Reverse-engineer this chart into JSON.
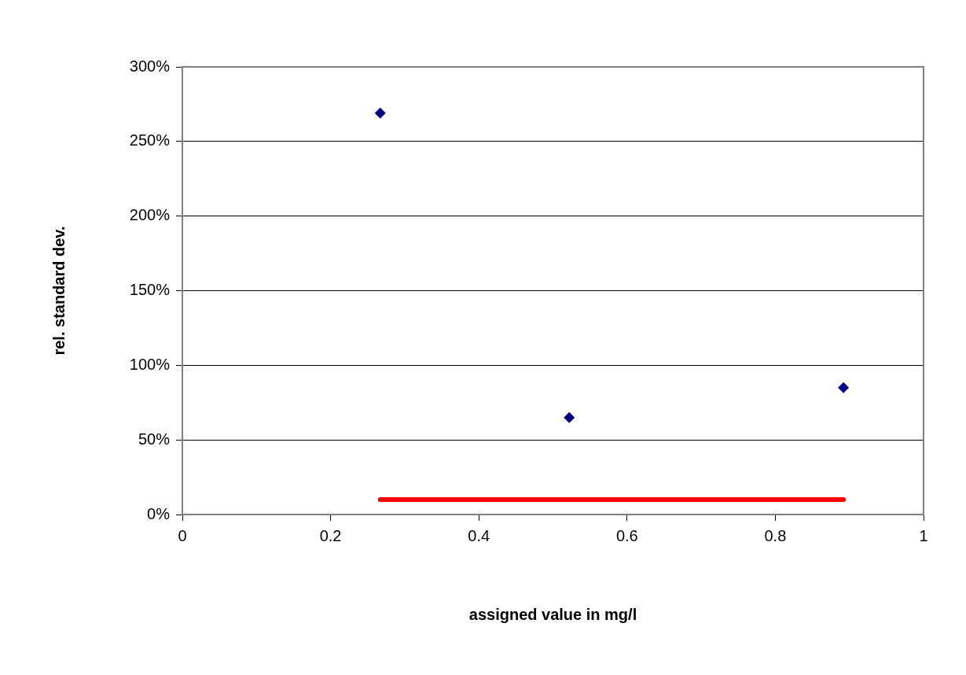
{
  "chart_data": {
    "type": "scatter",
    "xlabel": "assigned value in mg/l",
    "ylabel": "rel. standard dev.",
    "xlim": [
      0,
      1
    ],
    "xticks": [
      0,
      0.2,
      0.4,
      0.6,
      0.8,
      1
    ],
    "ylim": [
      0,
      300
    ],
    "yticks": [
      {
        "value": 0,
        "label": "0%"
      },
      {
        "value": 50,
        "label": "50%"
      },
      {
        "value": 100,
        "label": "100%"
      },
      {
        "value": 150,
        "label": "150%"
      },
      {
        "value": 200,
        "label": "200%"
      },
      {
        "value": 250,
        "label": "250%"
      },
      {
        "value": 300,
        "label": "300%"
      }
    ],
    "grid": "y",
    "legend": false,
    "series": [
      {
        "type": "scatter",
        "color": "#000080",
        "marker": "diamond",
        "x": [
          0.267,
          0.522,
          0.892
        ],
        "values": [
          269,
          65,
          85
        ]
      },
      {
        "type": "line",
        "color": "#ff0000",
        "marker": "none",
        "line_style": "solid",
        "x": [
          0.267,
          0.892
        ],
        "values": [
          10,
          10
        ]
      }
    ]
  }
}
